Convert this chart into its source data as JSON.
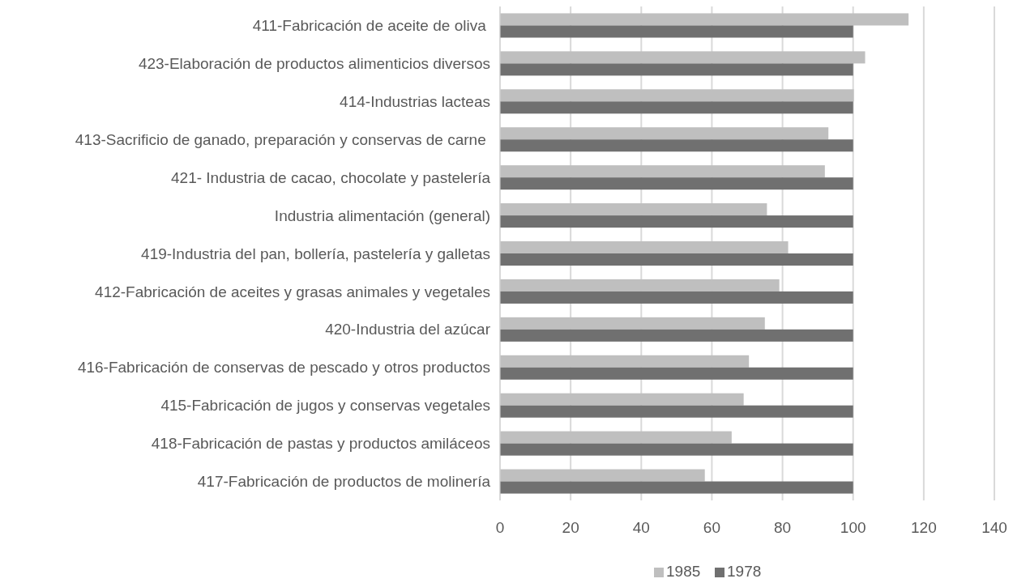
{
  "chart_data": {
    "type": "bar",
    "orientation": "horizontal",
    "categories": [
      "411-Fabricación de aceite de oliva ",
      "423-Elaboración de productos alimenticios diversos",
      "414-Industrias lacteas",
      "413-Sacrificio de ganado, preparación y conservas de carne ",
      "421- Industria de cacao, chocolate y pastelería",
      "Industria alimentación (general)",
      "419-Industria del pan, bollería, pastelería y galletas",
      "412-Fabricación de aceites y grasas animales y vegetales",
      "420-Industria del azúcar",
      "416-Fabricación de conservas de pescado y otros productos",
      "415-Fabricación de jugos y conservas vegetales",
      "418-Fabricación de pastas y productos amiláceos",
      "417-Fabricación de productos de molinería"
    ],
    "series": [
      {
        "name": "1985",
        "color": "#bfbfbf",
        "values": [
          115.7,
          103.4,
          100.2,
          93,
          92,
          75.6,
          81.6,
          79.1,
          75,
          70.5,
          69,
          65.6,
          58
        ]
      },
      {
        "name": "1978",
        "color": "#707070",
        "values": [
          100,
          100,
          100,
          100,
          100,
          100,
          100,
          100,
          100,
          100,
          100,
          100,
          100
        ]
      }
    ],
    "xlim": [
      0,
      140
    ],
    "xticks": [
      0,
      20,
      40,
      60,
      80,
      100,
      120,
      140
    ],
    "grid": "x",
    "legend": "bottom"
  }
}
